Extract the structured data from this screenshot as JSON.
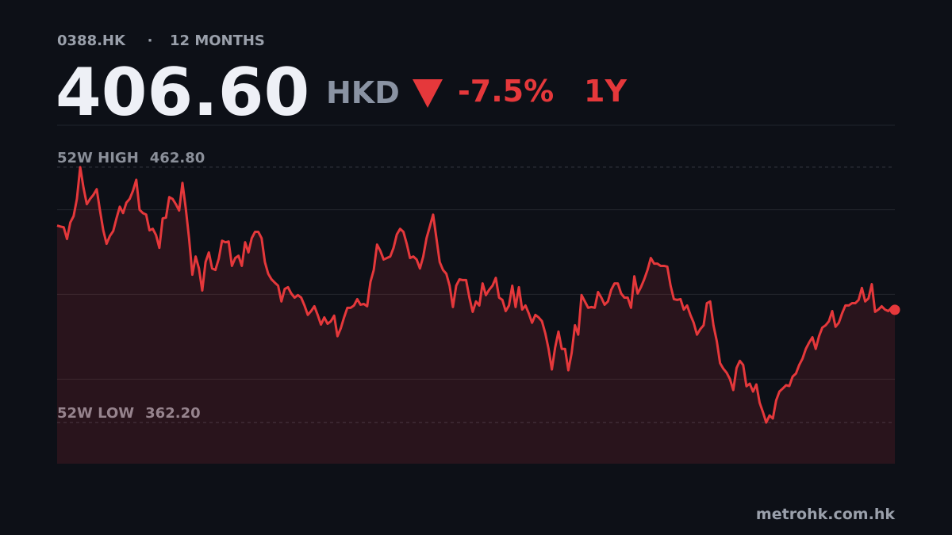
{
  "header": {
    "ticker": "0388.HK",
    "separator": "·",
    "period": "12 MONTHS",
    "price": "406.60",
    "currency": "HKD",
    "change": "-7.5%",
    "range": "1Y"
  },
  "chart_data": {
    "type": "line",
    "series": [
      {
        "name": "0388.HK",
        "color": "#e5383b",
        "values": [
          439.8,
          439.4,
          439.1,
          434.5,
          441.0,
          443.5,
          450.3,
          462.8,
          454.7,
          448.2,
          450.3,
          451.9,
          454.1,
          445.7,
          437.9,
          432.6,
          435.7,
          437.6,
          442.6,
          447.2,
          444.7,
          448.8,
          450.3,
          453.5,
          457.8,
          446.0,
          444.7,
          444.1,
          437.9,
          438.5,
          436.0,
          431.0,
          442.6,
          442.9,
          451.0,
          450.3,
          448.2,
          445.7,
          456.6,
          446.6,
          434.8,
          420.4,
          427.6,
          422.9,
          414.2,
          425.4,
          429.2,
          422.9,
          422.3,
          426.7,
          433.8,
          433.2,
          433.5,
          423.9,
          427.0,
          427.9,
          423.9,
          433.2,
          429.2,
          434.8,
          437.3,
          437.3,
          434.8,
          425.4,
          420.8,
          418.6,
          417.3,
          416.1,
          409.9,
          414.8,
          415.5,
          413.0,
          411.4,
          412.4,
          411.4,
          408.3,
          404.6,
          406.1,
          408.0,
          404.6,
          400.8,
          403.6,
          401.1,
          402.1,
          404.3,
          396.2,
          399.3,
          403.6,
          407.4,
          407.4,
          408.3,
          410.8,
          408.6,
          408.9,
          408.0,
          417.6,
          422.3,
          432.3,
          429.8,
          426.4,
          427.0,
          427.6,
          431.0,
          436.3,
          438.5,
          437.3,
          432.6,
          427.0,
          427.6,
          426.4,
          422.9,
          427.6,
          434.8,
          439.4,
          444.1,
          434.8,
          425.4,
          422.3,
          420.8,
          416.1,
          407.7,
          416.1,
          418.6,
          418.3,
          418.3,
          411.4,
          405.8,
          409.9,
          408.3,
          417.0,
          412.4,
          414.5,
          416.1,
          419.2,
          411.4,
          410.5,
          406.1,
          408.3,
          416.1,
          407.7,
          415.5,
          406.7,
          408.3,
          405.2,
          401.5,
          404.6,
          403.6,
          402.1,
          397.4,
          391.2,
          383.1,
          391.8,
          398.0,
          391.2,
          391.2,
          382.8,
          389.6,
          400.5,
          396.8,
          412.4,
          409.9,
          407.4,
          407.7,
          407.4,
          413.6,
          411.4,
          408.6,
          409.9,
          414.5,
          417.0,
          417.0,
          413.0,
          411.4,
          411.4,
          407.4,
          419.8,
          413.0,
          415.5,
          418.6,
          422.3,
          427.0,
          424.8,
          424.8,
          423.9,
          423.9,
          423.6,
          416.1,
          410.8,
          410.5,
          410.8,
          406.7,
          408.3,
          404.6,
          401.5,
          396.8,
          399.0,
          400.5,
          409.2,
          409.9,
          400.5,
          394.3,
          385.6,
          383.4,
          381.8,
          379.3,
          375.0,
          383.7,
          386.5,
          384.9,
          376.5,
          377.5,
          374.4,
          377.2,
          370.0,
          366.3,
          362.2,
          365.0,
          363.8,
          370.9,
          374.4,
          375.6,
          376.9,
          376.6,
          380.3,
          381.5,
          384.9,
          387.4,
          391.2,
          393.7,
          395.8,
          391.2,
          396.2,
          399.6,
          400.5,
          402.1,
          406.1,
          399.9,
          401.5,
          405.2,
          408.3,
          408.3,
          409.2,
          409.2,
          410.5,
          415.2,
          409.9,
          411.1,
          416.7,
          405.8,
          406.7,
          408.0,
          406.7,
          406.1,
          407.4,
          406.6
        ]
      }
    ],
    "ylim": [
      346,
      479.3
    ],
    "yticks": [
      379.3,
      412.7,
      446
    ],
    "grid": true,
    "reference_lines": [
      {
        "label": "52W HIGH",
        "value": 462.8,
        "value_label": "462.80"
      },
      {
        "label": "52W LOW",
        "value": 362.2,
        "value_label": "362.20"
      }
    ]
  },
  "footer": {
    "source": "metrohk.com.hk"
  }
}
